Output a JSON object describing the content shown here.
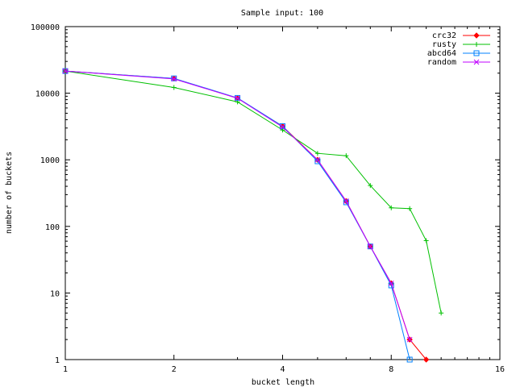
{
  "chart_data": {
    "type": "line",
    "title": "Sample input: 100",
    "xlabel": "bucket length",
    "ylabel": "number of buckets",
    "xscale": "log2",
    "yscale": "log10",
    "xlim": [
      1,
      16
    ],
    "ylim": [
      1,
      100000
    ],
    "x_ticks": [
      1,
      2,
      4,
      8,
      16
    ],
    "x_tick_labels": [
      "1",
      "2",
      "4",
      "8",
      "16"
    ],
    "y_ticks": [
      1,
      10,
      100,
      1000,
      10000,
      100000
    ],
    "y_tick_labels": [
      "1",
      "10",
      "100",
      "1000",
      "10000",
      "100000"
    ],
    "grid": false,
    "legend_position": "top-right",
    "series": [
      {
        "name": "crc32",
        "color": "#ff0000",
        "marker": "diamond",
        "points": [
          [
            1,
            21500
          ],
          [
            2,
            16600
          ],
          [
            3,
            8400
          ],
          [
            4,
            3200
          ],
          [
            5,
            1000
          ],
          [
            6,
            240
          ],
          [
            7,
            50
          ],
          [
            8,
            14
          ],
          [
            9,
            2
          ],
          [
            10,
            1
          ]
        ]
      },
      {
        "name": "rusty",
        "color": "#00c000",
        "marker": "plus",
        "points": [
          [
            1,
            21500
          ],
          [
            2,
            12200
          ],
          [
            3,
            7400
          ],
          [
            4,
            2800
          ],
          [
            5,
            1250
          ],
          [
            6,
            1150
          ],
          [
            7,
            410
          ],
          [
            8,
            190
          ],
          [
            9,
            185
          ],
          [
            10,
            61
          ],
          [
            11,
            5
          ]
        ]
      },
      {
        "name": "abcd64",
        "color": "#0080ff",
        "marker": "square",
        "points": [
          [
            1,
            21500
          ],
          [
            2,
            16700
          ],
          [
            3,
            8500
          ],
          [
            4,
            3200
          ],
          [
            5,
            950
          ],
          [
            6,
            230
          ],
          [
            7,
            50
          ],
          [
            8,
            13
          ],
          [
            9,
            1
          ]
        ]
      },
      {
        "name": "random",
        "color": "#c000ff",
        "marker": "x",
        "points": [
          [
            1,
            21500
          ],
          [
            2,
            16400
          ],
          [
            3,
            8400
          ],
          [
            4,
            3100
          ],
          [
            5,
            1000
          ],
          [
            6,
            240
          ],
          [
            7,
            50
          ],
          [
            8,
            14
          ],
          [
            9,
            2
          ]
        ]
      }
    ]
  }
}
